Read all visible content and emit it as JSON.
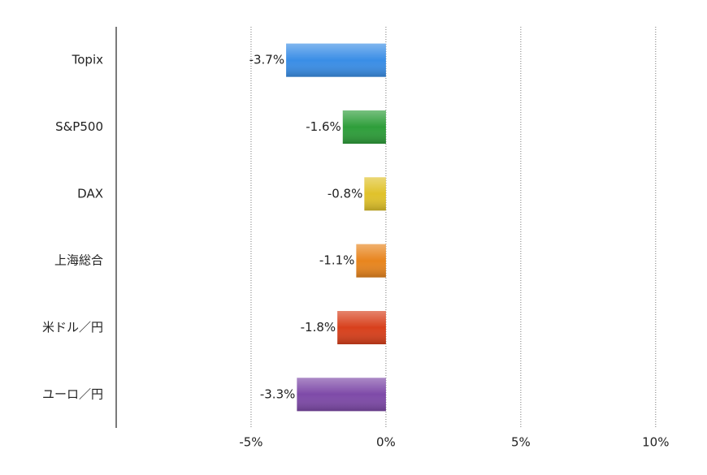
{
  "chart_data": {
    "type": "bar",
    "orientation": "horizontal",
    "categories": [
      "Topix",
      "S&P500",
      "DAX",
      "上海総合",
      "米ドル／円",
      "ユーロ／円"
    ],
    "values": [
      -3.7,
      -1.6,
      -0.8,
      -1.1,
      -1.8,
      -3.3
    ],
    "value_labels": [
      "-3.7%",
      "-1.6%",
      "-0.8%",
      "-1.1%",
      "-1.8%",
      "-3.3%"
    ],
    "colors": [
      "#3a8ee6",
      "#2e9e3a",
      "#e0c22a",
      "#e8851e",
      "#d8401c",
      "#7e4aa8"
    ],
    "xlim": [
      -10,
      11
    ],
    "xticks": [
      {
        "value": -5,
        "label": "-5%"
      },
      {
        "value": 0,
        "label": "0%"
      },
      {
        "value": 5,
        "label": "5%"
      },
      {
        "value": 10,
        "label": "10%"
      }
    ],
    "grid": true
  }
}
